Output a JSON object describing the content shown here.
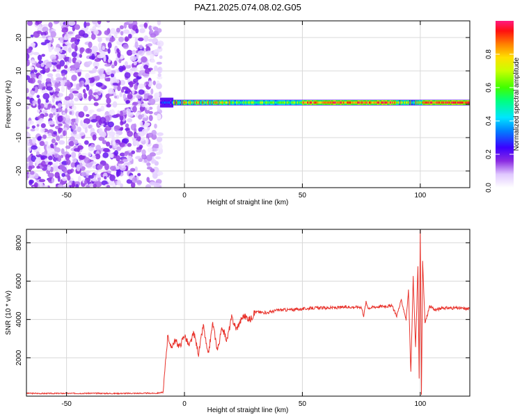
{
  "title": "PAZ1.2025.074.08.02.G05",
  "chart_data": [
    {
      "type": "heatmap",
      "xlabel": "Height of straight line (km)",
      "ylabel": "Frequency (Hz)",
      "xlim": [
        -67,
        121
      ],
      "ylim": [
        -25,
        25
      ],
      "xticks": [
        -50,
        0,
        50,
        100
      ],
      "yticks": [
        -20,
        -10,
        0,
        10,
        20
      ],
      "grid": true,
      "description_series": [
        {
          "x_range": [
            -67,
            -10
          ],
          "pattern": "noise",
          "amplitude_range": [
            0.0,
            0.15
          ]
        },
        {
          "x_range": [
            -10,
            121
          ],
          "pattern": "line_near_zero_hz",
          "frequency_hz": 0.5,
          "amplitude_range": [
            0.1,
            1.0
          ]
        }
      ],
      "colorbar": {
        "label": "Normalized spectral amplitude",
        "range": [
          0,
          1
        ],
        "ticks": [
          0.0,
          0.2,
          0.4,
          0.6,
          0.8
        ]
      }
    },
    {
      "type": "line",
      "xlabel": "Height of straight line (km)",
      "ylabel": "SNR (10 * v/v)",
      "xlim": [
        -67,
        121
      ],
      "ylim": [
        0,
        8700
      ],
      "xticks": [
        -50,
        0,
        50,
        100
      ],
      "yticks": [
        2000,
        4000,
        6000,
        8000
      ],
      "grid": true,
      "color": "#e8312a",
      "series": [
        {
          "x": [
            -67,
            -60,
            -50,
            -40,
            -30,
            -20,
            -12,
            -9,
            -8,
            -7,
            -6,
            -4,
            -2,
            0,
            2,
            4,
            6,
            8,
            10,
            12,
            14,
            16,
            18,
            20,
            22,
            25,
            28,
            30,
            35,
            40,
            45,
            50,
            55,
            60,
            65,
            70,
            75,
            76,
            77,
            78,
            80,
            85,
            88,
            90,
            92,
            94,
            95,
            96,
            97,
            98,
            99,
            99.5,
            100,
            100.5,
            101,
            102,
            104,
            106,
            110,
            115,
            121
          ],
          "y": [
            150,
            140,
            145,
            150,
            140,
            150,
            150,
            200,
            1800,
            3300,
            2500,
            2900,
            2600,
            3200,
            2600,
            3300,
            2200,
            3700,
            2100,
            3800,
            2400,
            3600,
            2900,
            4100,
            3500,
            4200,
            4000,
            4400,
            4350,
            4500,
            4500,
            4550,
            4600,
            4600,
            4620,
            4650,
            4650,
            4200,
            4900,
            4600,
            4650,
            4700,
            4700,
            4200,
            5000,
            4000,
            5500,
            1200,
            6200,
            2500,
            6800,
            1000,
            8650,
            100,
            7000,
            3800,
            4700,
            4500,
            4600,
            4600,
            4550
          ]
        }
      ]
    }
  ]
}
